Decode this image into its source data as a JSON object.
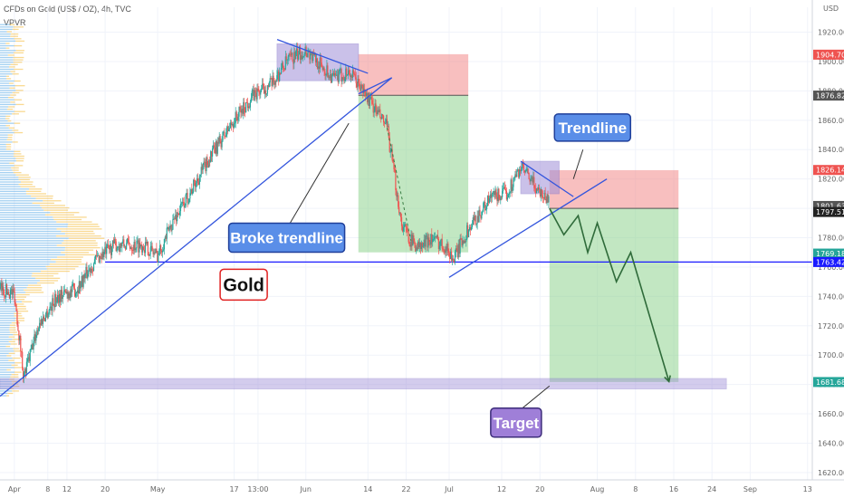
{
  "header": {
    "title": "CFDs on Gold (US$ / OZ), 4h, TVC",
    "indicator": "VPVR",
    "currency": "USD"
  },
  "colors": {
    "up": "#26a69a",
    "down": "#ef5350",
    "trend": "#3355dd",
    "support": "#1a1aff",
    "zone": "#9f8fd8",
    "stop": "#f28b8b",
    "profit": "#8fd48f",
    "vp_blue": "#5aa9e6",
    "vp_yellow": "#f5c04a"
  },
  "chart_data": {
    "type": "candlestick",
    "yaxis": {
      "ticks": [
        1620,
        1640,
        1660,
        1680,
        1700,
        1720,
        1740,
        1760,
        1780,
        1800,
        1820,
        1840,
        1860,
        1880,
        1900,
        1920
      ],
      "range": [
        1615,
        1937
      ]
    },
    "xaxis": {
      "ticks": [
        {
          "label": "Apr",
          "day": 1
        },
        {
          "label": "8",
          "day": 8
        },
        {
          "label": "12",
          "day": 12
        },
        {
          "label": "20",
          "day": 20
        },
        {
          "label": "May",
          "day": 31
        },
        {
          "label": "17",
          "day": 47
        },
        {
          "label": "13:00",
          "day": 52
        },
        {
          "label": "Jun",
          "day": 62
        },
        {
          "label": "14",
          "day": 75
        },
        {
          "label": "22",
          "day": 83
        },
        {
          "label": "Jul",
          "day": 92
        },
        {
          "label": "12",
          "day": 103
        },
        {
          "label": "20",
          "day": 111
        },
        {
          "label": "Aug",
          "day": 123
        },
        {
          "label": "8",
          "day": 131
        },
        {
          "label": "16",
          "day": 139
        },
        {
          "label": "24",
          "day": 147
        },
        {
          "label": "Sep",
          "day": 155
        },
        {
          "label": "13",
          "day": 167
        }
      ],
      "range": [
        -2,
        168
      ]
    },
    "price_path": [
      [
        -2,
        1745
      ],
      [
        1,
        1742
      ],
      [
        3,
        1685
      ],
      [
        6,
        1720
      ],
      [
        10,
        1740
      ],
      [
        14,
        1745
      ],
      [
        18,
        1765
      ],
      [
        22,
        1775
      ],
      [
        28,
        1775
      ],
      [
        31,
        1768
      ],
      [
        34,
        1790
      ],
      [
        38,
        1812
      ],
      [
        42,
        1835
      ],
      [
        47,
        1860
      ],
      [
        51,
        1877
      ],
      [
        55,
        1885
      ],
      [
        58,
        1900
      ],
      [
        62,
        1908
      ],
      [
        65,
        1898
      ],
      [
        68,
        1888
      ],
      [
        71,
        1893
      ],
      [
        74,
        1880
      ],
      [
        76,
        1870
      ],
      [
        79,
        1855
      ],
      [
        82,
        1790
      ],
      [
        84,
        1778
      ],
      [
        86,
        1773
      ],
      [
        88,
        1780
      ],
      [
        91,
        1775
      ],
      [
        93,
        1765
      ],
      [
        95,
        1780
      ],
      [
        98,
        1795
      ],
      [
        101,
        1808
      ],
      [
        104,
        1810
      ],
      [
        107,
        1828
      ],
      [
        110,
        1815
      ],
      [
        113,
        1805
      ]
    ],
    "price_labels": [
      {
        "value": 1904.7,
        "text": "1904.70",
        "color": "#ef5350"
      },
      {
        "value": 1876.82,
        "text": "1876.82",
        "color": "#555555"
      },
      {
        "value": 1826.14,
        "text": "1826.14",
        "color": "#ef5350"
      },
      {
        "value": 1801.63,
        "text": "1801.63",
        "color": "#555555"
      },
      {
        "value": 1797.51,
        "text": "1797.51",
        "color": "#222222"
      },
      {
        "value": 1769.18,
        "text": "1769.18",
        "color": "#26a69a"
      },
      {
        "value": 1763.42,
        "text": "1763.42",
        "color": "#1a1aff"
      },
      {
        "value": 1681.68,
        "text": "1681.68",
        "color": "#26a69a"
      }
    ],
    "support_line": 1763.42,
    "target_zone": [
      1677,
      1684
    ],
    "target_zone_span": [
      -2,
      150
    ],
    "trendlines": [
      {
        "name": "long-uptrend",
        "from": [
          -2,
          1672
        ],
        "to": [
          80,
          1889
        ]
      },
      {
        "name": "top-downtrend",
        "from": [
          56,
          1915
        ],
        "to": [
          75,
          1892
        ]
      },
      {
        "name": "top-break",
        "from": [
          73,
          1878
        ],
        "to": [
          80,
          1889
        ]
      },
      {
        "name": "july-uptrend",
        "from": [
          92,
          1753
        ],
        "to": [
          125,
          1820
        ]
      },
      {
        "name": "july-downtrend",
        "from": [
          107,
          1832
        ],
        "to": [
          118,
          1808
        ]
      }
    ],
    "zones": [
      {
        "name": "june-top-box",
        "x": [
          56,
          73
        ],
        "y": [
          1887,
          1912
        ]
      },
      {
        "name": "july-top-box",
        "x": [
          107,
          115
        ],
        "y": [
          1810,
          1832
        ]
      }
    ],
    "positions": [
      {
        "name": "june-short",
        "x": [
          73,
          96
        ],
        "entry": 1877,
        "stop": 1905,
        "target": 1770
      },
      {
        "name": "july-short",
        "x": [
          113,
          140
        ],
        "entry": 1800,
        "stop": 1826,
        "target": 1681.68
      }
    ],
    "projection": [
      [
        113,
        1800
      ],
      [
        116,
        1782
      ],
      [
        119,
        1795
      ],
      [
        121,
        1770
      ],
      [
        123,
        1790
      ],
      [
        127,
        1750
      ],
      [
        130,
        1770
      ],
      [
        138,
        1682
      ]
    ],
    "annotations": [
      {
        "text": "Trendline"
      },
      {
        "text": "Broke trendline"
      },
      {
        "text": "Gold"
      },
      {
        "text": "Target"
      }
    ]
  }
}
